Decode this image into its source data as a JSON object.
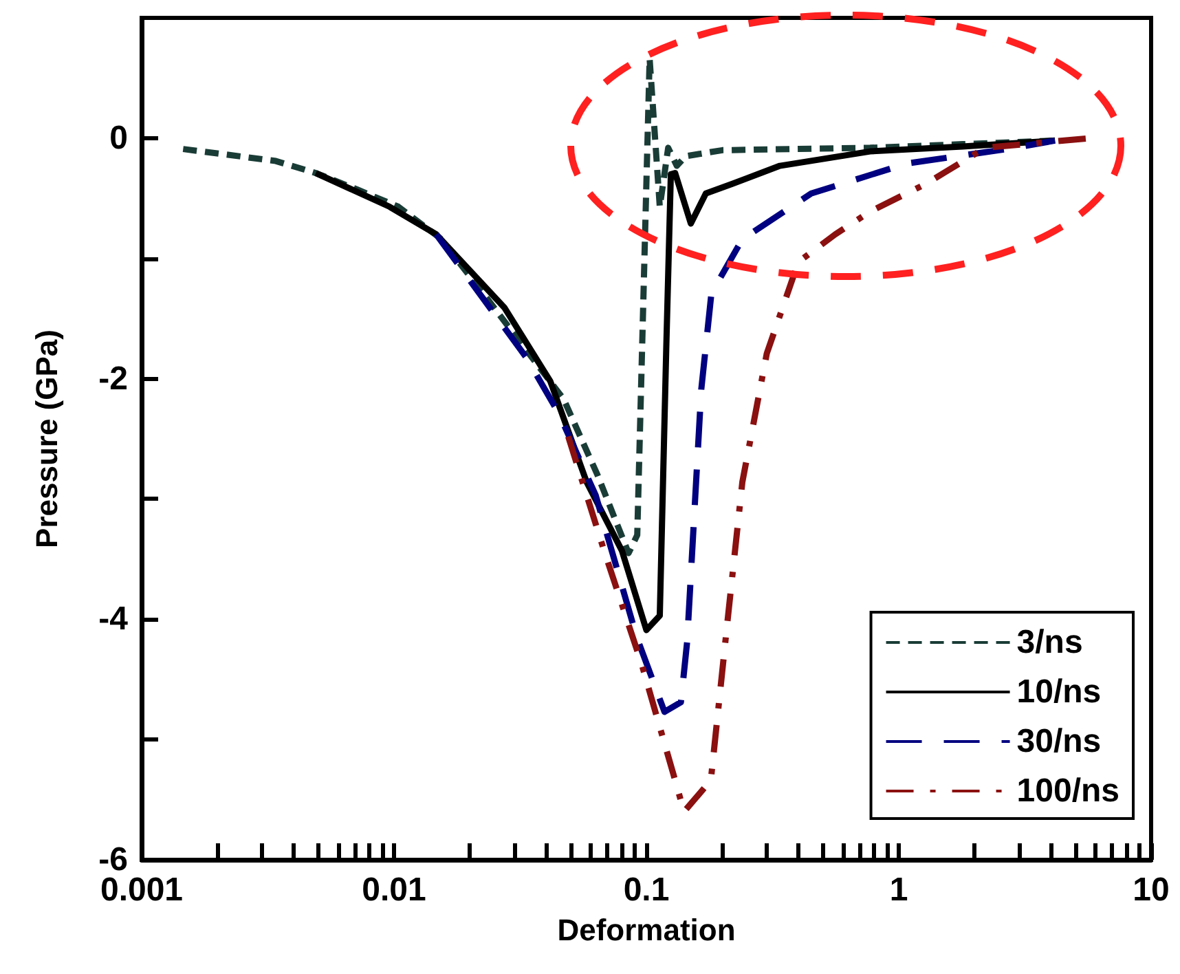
{
  "chart_data": {
    "type": "line",
    "xlabel": "Deformation",
    "ylabel": "Pressure (GPa)",
    "log": "x",
    "xlim": [
      0.001,
      10
    ],
    "xticks": [
      0.001,
      {
        "value": 0.002,
        "label": null
      },
      {
        "value": 0.003,
        "label": null
      },
      {
        "value": 0.004,
        "label": null
      },
      {
        "value": 0.005,
        "label": null
      },
      {
        "value": 0.006,
        "label": null
      },
      {
        "value": 0.007,
        "label": null
      },
      {
        "value": 0.008,
        "label": null
      },
      {
        "value": 0.009,
        "label": null
      },
      0.01,
      {
        "value": 0.02,
        "label": null
      },
      {
        "value": 0.03,
        "label": null
      },
      {
        "value": 0.04,
        "label": null
      },
      {
        "value": 0.05,
        "label": null
      },
      {
        "value": 0.06,
        "label": null
      },
      {
        "value": 0.07,
        "label": null
      },
      {
        "value": 0.08,
        "label": null
      },
      {
        "value": 0.09,
        "label": null
      },
      0.1,
      {
        "value": 0.2,
        "label": null
      },
      {
        "value": 0.3,
        "label": null
      },
      {
        "value": 0.4,
        "label": null
      },
      {
        "value": 0.5,
        "label": null
      },
      {
        "value": 0.6,
        "label": null
      },
      {
        "value": 0.7,
        "label": null
      },
      {
        "value": 0.8,
        "label": null
      },
      {
        "value": 0.9,
        "label": null
      },
      1,
      {
        "value": 2,
        "label": null
      },
      {
        "value": 3,
        "label": null
      },
      {
        "value": 4,
        "label": null
      },
      {
        "value": 5,
        "label": null
      },
      {
        "value": 6,
        "label": null
      },
      {
        "value": 7,
        "label": null
      },
      {
        "value": 8,
        "label": null
      },
      {
        "value": 9,
        "label": null
      },
      10
    ],
    "ylim": [
      -6,
      1
    ],
    "yticks": [
      -6,
      {
        "value": -5,
        "label": null
      },
      -4,
      {
        "value": -3,
        "label": null
      },
      -2,
      {
        "value": -1,
        "label": null
      },
      0
    ],
    "grid": false,
    "legend": "bottom right",
    "marker": "none",
    "series": [
      {
        "name": "3/ns",
        "color": "#1a3c36",
        "line_style": "dashed",
        "x": [
          0.00146,
          0.0034,
          0.0049,
          0.0072,
          0.0104,
          0.0152,
          0.022,
          0.032,
          0.047,
          0.064,
          0.085,
          0.092,
          0.103,
          0.113,
          0.122,
          0.132,
          0.143,
          0.2,
          0.4,
          0.77,
          1.79,
          4.16
        ],
        "values": [
          -0.09,
          -0.19,
          -0.29,
          -0.43,
          -0.57,
          -0.83,
          -1.26,
          -1.71,
          -2.17,
          -2.8,
          -3.45,
          -3.3,
          0.66,
          -0.57,
          -0.08,
          -0.23,
          -0.15,
          -0.1,
          -0.09,
          -0.08,
          -0.05,
          -0.02
        ]
      },
      {
        "name": "10/ns",
        "color": "#000000",
        "line_style": "solid",
        "x": [
          0.0049,
          0.0096,
          0.0147,
          0.0274,
          0.0416,
          0.058,
          0.08,
          0.1,
          0.113,
          0.12,
          0.125,
          0.13,
          0.15,
          0.172,
          0.219,
          0.338,
          0.77,
          1.79,
          4.16
        ],
        "values": [
          -0.29,
          -0.57,
          -0.8,
          -1.41,
          -2.02,
          -2.86,
          -3.43,
          -4.09,
          -3.97,
          -1.71,
          -0.3,
          -0.29,
          -0.71,
          -0.46,
          -0.38,
          -0.23,
          -0.11,
          -0.07,
          -0.02
        ]
      },
      {
        "name": "30/ns",
        "color": "#000080",
        "line_style": "dashed",
        "x": [
          0.0147,
          0.0336,
          0.045,
          0.063,
          0.0916,
          0.118,
          0.137,
          0.145,
          0.165,
          0.181,
          0.24,
          0.45,
          1.08,
          2.7,
          4.16
        ],
        "values": [
          -0.8,
          -1.83,
          -2.29,
          -2.97,
          -4.15,
          -4.77,
          -4.69,
          -4.19,
          -2.09,
          -1.29,
          -0.84,
          -0.46,
          -0.21,
          -0.09,
          -0.02
        ]
      },
      {
        "name": "100/ns",
        "color": "#8b1010",
        "line_style": "dashed",
        "x": [
          0.049,
          0.068,
          0.096,
          0.128,
          0.141,
          0.18,
          0.21,
          0.24,
          0.3,
          0.4,
          0.56,
          0.77,
          1.28,
          2.2,
          5.73
        ],
        "values": [
          -2.48,
          -3.43,
          -4.38,
          -5.29,
          -5.6,
          -5.34,
          -4.0,
          -2.86,
          -1.79,
          -1.03,
          -0.8,
          -0.61,
          -0.38,
          -0.08,
          0
        ]
      }
    ]
  }
}
